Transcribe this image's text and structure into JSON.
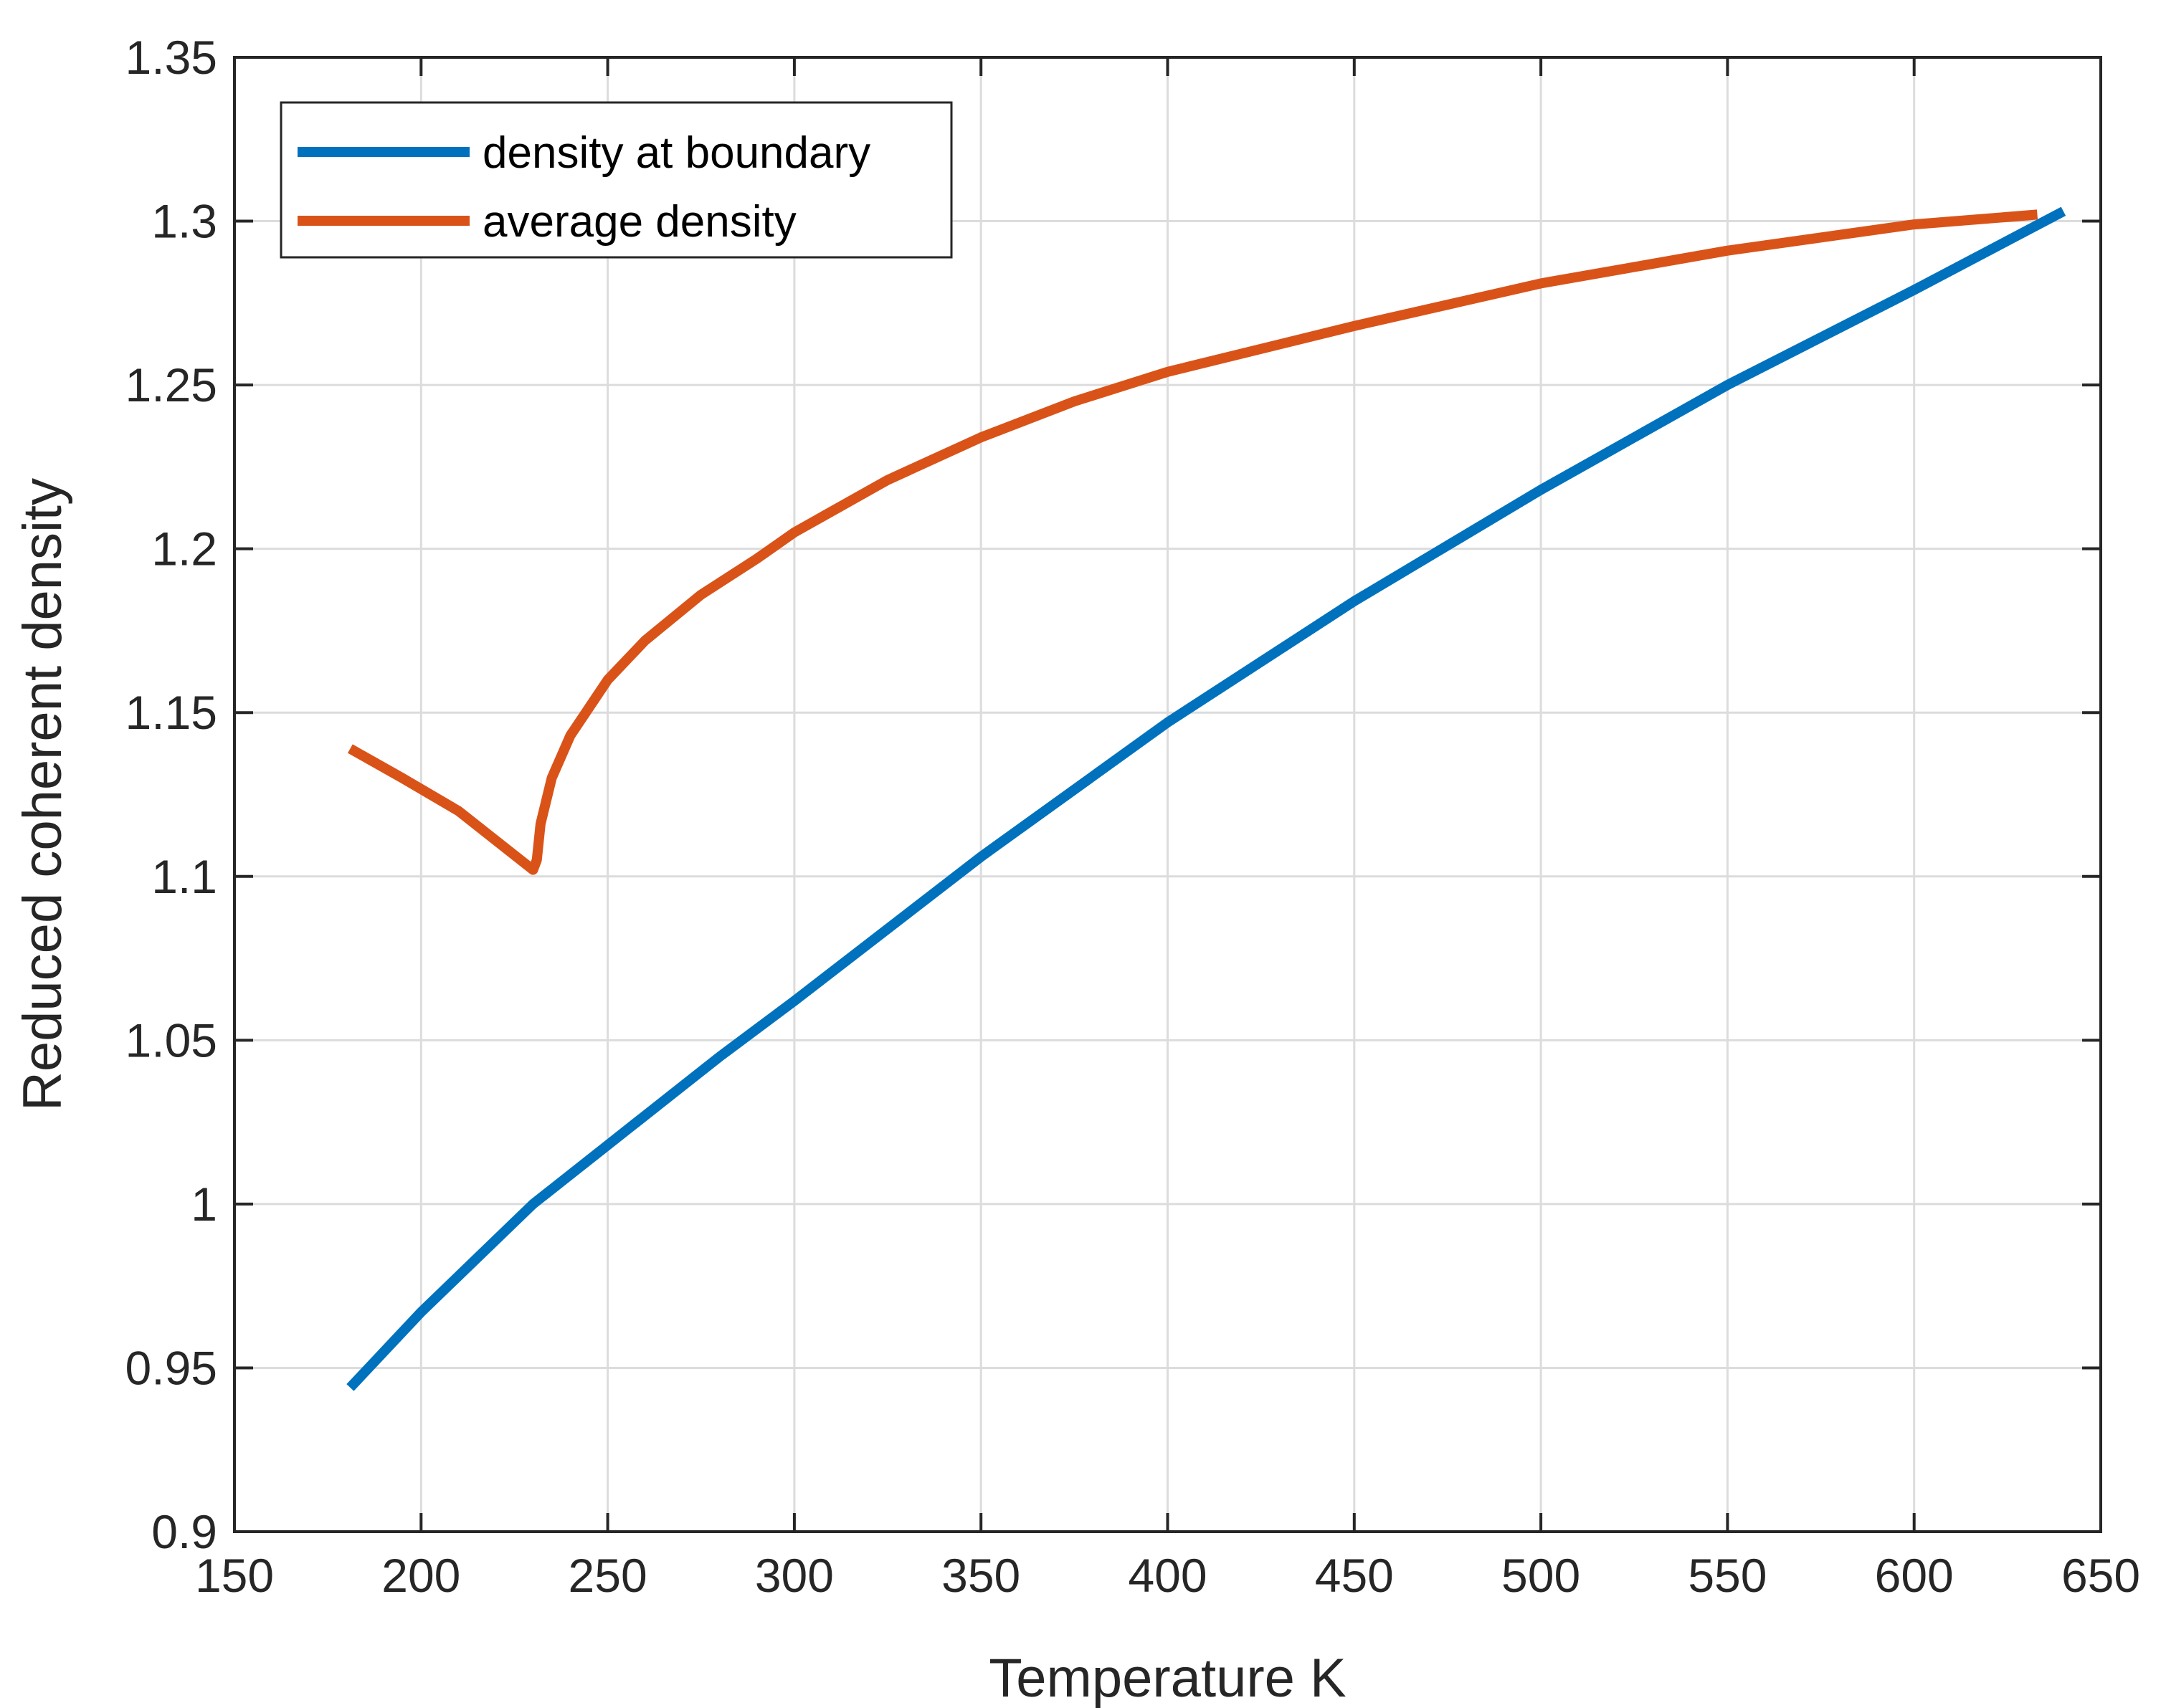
{
  "chart_data": {
    "type": "line",
    "xlabel": "Temperature K",
    "ylabel": "Reduced coherent density",
    "xlim": [
      150,
      650
    ],
    "ylim": [
      0.9,
      1.35
    ],
    "xticks": [
      "150",
      "200",
      "250",
      "300",
      "350",
      "400",
      "450",
      "500",
      "550",
      "600",
      "650"
    ],
    "yticks": [
      "0.9",
      "0.95",
      "1",
      "1.05",
      "1.1",
      "1.15",
      "1.2",
      "1.25",
      "1.3",
      "1.35"
    ],
    "grid": true,
    "legend_position": "top-left",
    "series": [
      {
        "name": "density at boundary",
        "color": "#0072BD",
        "x": [
          181,
          200,
          230,
          250,
          280,
          300,
          350,
          400,
          450,
          500,
          550,
          600,
          640
        ],
        "y": [
          0.944,
          0.967,
          1.0,
          1.018,
          1.045,
          1.062,
          1.106,
          1.147,
          1.184,
          1.218,
          1.25,
          1.279,
          1.303
        ]
      },
      {
        "name": "average density",
        "color": "#D95319",
        "x": [
          181,
          195,
          210,
          220,
          230,
          231,
          232,
          235,
          240,
          250,
          260,
          275,
          290,
          300,
          325,
          350,
          375,
          400,
          450,
          500,
          550,
          600,
          633
        ],
        "y": [
          1.139,
          1.13,
          1.12,
          1.111,
          1.102,
          1.105,
          1.116,
          1.13,
          1.143,
          1.16,
          1.172,
          1.186,
          1.197,
          1.205,
          1.221,
          1.234,
          1.245,
          1.254,
          1.268,
          1.281,
          1.291,
          1.299,
          1.302
        ]
      }
    ]
  }
}
